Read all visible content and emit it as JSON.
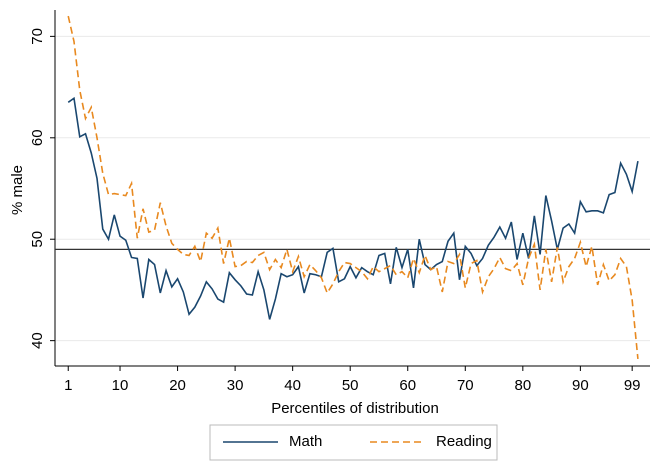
{
  "chart_data": {
    "type": "line",
    "xlabel": "Percentiles of distribution",
    "ylabel": "% male",
    "x": [
      1,
      2,
      3,
      4,
      5,
      6,
      7,
      8,
      9,
      10,
      11,
      12,
      13,
      14,
      15,
      16,
      17,
      18,
      19,
      20,
      21,
      22,
      23,
      24,
      25,
      26,
      27,
      28,
      29,
      30,
      31,
      32,
      33,
      34,
      35,
      36,
      37,
      38,
      39,
      40,
      41,
      42,
      43,
      44,
      45,
      46,
      47,
      48,
      49,
      50,
      51,
      52,
      53,
      54,
      55,
      56,
      57,
      58,
      59,
      60,
      61,
      62,
      63,
      64,
      65,
      66,
      67,
      68,
      69,
      70,
      71,
      72,
      73,
      74,
      75,
      76,
      77,
      78,
      79,
      80,
      81,
      82,
      83,
      84,
      85,
      86,
      87,
      88,
      89,
      90,
      91,
      92,
      93,
      94,
      95,
      96,
      97,
      98,
      99,
      100
    ],
    "series": [
      {
        "name": "Math",
        "color": "#1a476f",
        "linestyle": "solid",
        "values": [
          63.5,
          63.9,
          60.1,
          60.4,
          58.5,
          56,
          51,
          50,
          52.4,
          50.3,
          49.9,
          48.2,
          48.1,
          44.2,
          48,
          47.5,
          44.7,
          46.9,
          45.3,
          46.1,
          44.8,
          42.6,
          43.3,
          44.4,
          45.8,
          45.1,
          44.1,
          43.8,
          46.7,
          46,
          45.4,
          44.6,
          44.5,
          46.8,
          45,
          42.1,
          44.1,
          46.6,
          46.3,
          46.5,
          47.3,
          44.7,
          46.6,
          46.5,
          46.3,
          48.7,
          49.1,
          45.8,
          46.1,
          47.3,
          46.2,
          47.2,
          46.8,
          46.5,
          48.4,
          48.6,
          45.6,
          49.2,
          47.2,
          49,
          45.2,
          50,
          47.5,
          47,
          47.5,
          47.8,
          49.8,
          50.6,
          46,
          49.3,
          48.6,
          47.4,
          48.1,
          49.4,
          50.2,
          51.2,
          50.1,
          51.7,
          48,
          50.6,
          48.1,
          52.3,
          48.5,
          54.3,
          51.8,
          49,
          51.1,
          51.5,
          50.6,
          53.7,
          52.7,
          52.8,
          52.8,
          52.6,
          54.4,
          54.6,
          57.5,
          56.4,
          54.7,
          57.7
        ]
      },
      {
        "name": "Reading",
        "color": "#e8891f",
        "linestyle": "dashed",
        "values": [
          72,
          69.5,
          64.7,
          61.9,
          63,
          60,
          56.5,
          54.4,
          54.5,
          54.4,
          54.3,
          55.5,
          50.1,
          53,
          50.7,
          50.9,
          53.6,
          51.3,
          49.6,
          49,
          48.5,
          48.4,
          49.3,
          47.8,
          50.6,
          50.1,
          51.1,
          47.6,
          50.1,
          47.3,
          47.4,
          47.8,
          47.7,
          48.4,
          48.7,
          47,
          48,
          47.2,
          49,
          46.8,
          48.3,
          46.3,
          47.5,
          46.9,
          46.2,
          44.7,
          45.6,
          46.8,
          47.7,
          47.6,
          47.2,
          46.8,
          46.1,
          47.3,
          46.8,
          47.1,
          47.4,
          46.5,
          46.8,
          46.2,
          48.1,
          46.7,
          48.4,
          47,
          47.3,
          44.8,
          47.8,
          47.6,
          48.5,
          45.2,
          47.6,
          47.9,
          44.8,
          46.3,
          47.1,
          48.2,
          47.1,
          46.9,
          47.6,
          45.5,
          48.1,
          49.5,
          45,
          49,
          45.8,
          49.2,
          45.8,
          47.3,
          48.1,
          49.7,
          47.3,
          49.3,
          45.5,
          47.5,
          45.9,
          46.5,
          48.1,
          47.3,
          44,
          38.2
        ]
      }
    ],
    "hline": 49,
    "xlim": [
      -1.3,
      102.1
    ],
    "ylim": [
      37.5,
      72.6
    ],
    "xticks": [
      1,
      10,
      20,
      30,
      40,
      50,
      60,
      70,
      80,
      90,
      99
    ],
    "yticks": [
      40,
      50,
      60,
      70
    ],
    "grid": true,
    "legend": "bottom"
  }
}
